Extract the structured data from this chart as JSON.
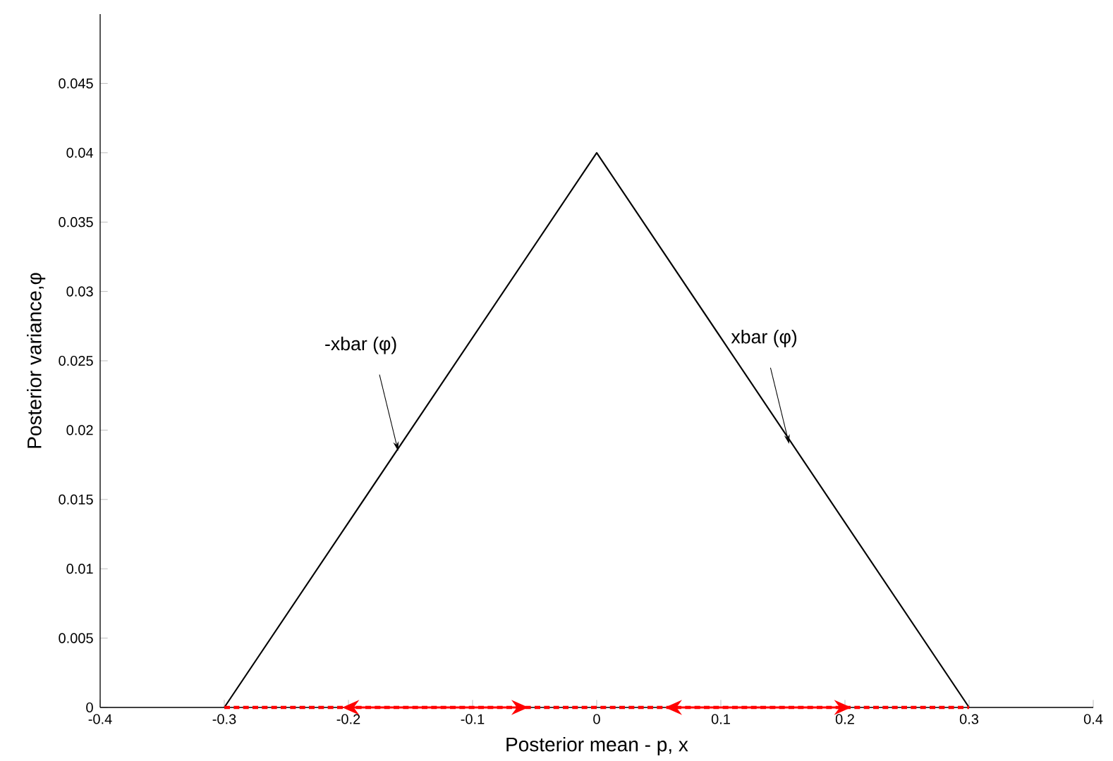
{
  "chart_data": {
    "type": "line",
    "xlabel": "Posterior mean - p, x",
    "ylabel": "Posterior variance,φ",
    "xlim": [
      -0.4,
      0.4
    ],
    "xticks": [
      -0.4,
      -0.3,
      -0.2,
      -0.1,
      0,
      0.1,
      0.2,
      0.3,
      0.4
    ],
    "ylim": [
      0,
      0.05
    ],
    "yticks": [
      0,
      0.005,
      0.01,
      0.015,
      0.02,
      0.025,
      0.03,
      0.035,
      0.04,
      0.045
    ],
    "grid": false,
    "marker": "none",
    "series": [
      {
        "color": "#000000",
        "line_style": "solid",
        "x": [
          -0.3,
          0,
          0.3
        ],
        "values": [
          0,
          0.04,
          0
        ]
      },
      {
        "color": "#ff0000",
        "line_style": "dashed",
        "x": [
          -0.3,
          0.3
        ],
        "values": [
          0,
          0
        ]
      }
    ],
    "annotations": [
      {
        "text": "-xbar (φ)",
        "x": -0.16,
        "y": 0.0185
      },
      {
        "text": "xbar (φ)",
        "x": 0.155,
        "y": 0.019
      }
    ]
  }
}
